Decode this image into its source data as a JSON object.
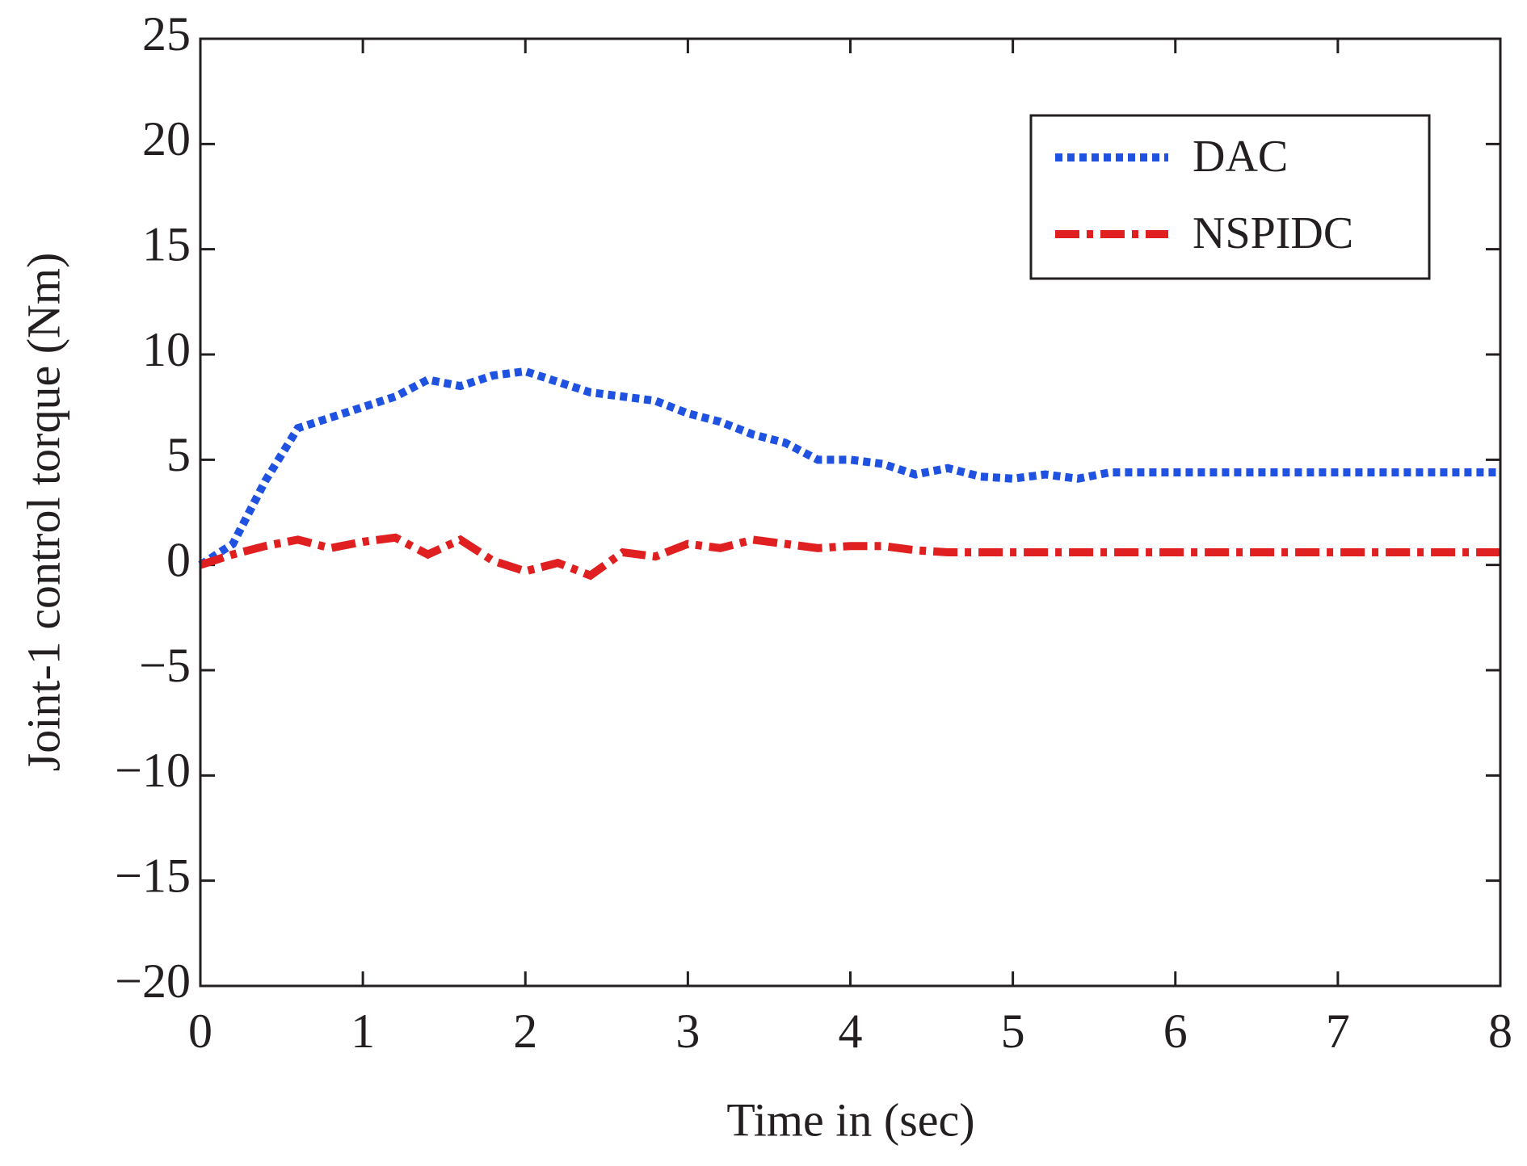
{
  "chart_data": {
    "type": "line",
    "xlabel": "Time in (sec)",
    "ylabel": "Joint-1 control torque (Nm)",
    "x": [
      0,
      0.2,
      0.4,
      0.6,
      0.8,
      1.0,
      1.2,
      1.4,
      1.6,
      1.8,
      2.0,
      2.2,
      2.4,
      2.6,
      2.8,
      3.0,
      3.2,
      3.4,
      3.6,
      3.8,
      4.0,
      4.2,
      4.4,
      4.6,
      4.8,
      5.0,
      5.2,
      5.4,
      5.6,
      5.8,
      6.0,
      6.4,
      6.8,
      7.2,
      7.6,
      8.0
    ],
    "series": [
      {
        "name": "DAC",
        "color": "#1f52e0",
        "dash": "dotted",
        "values": [
          0,
          1,
          4,
          6.5,
          7,
          7.5,
          8,
          8.8,
          8.5,
          9,
          9.2,
          8.7,
          8.2,
          8,
          7.8,
          7.2,
          6.8,
          6.2,
          5.8,
          5,
          5,
          4.8,
          4.3,
          4.6,
          4.2,
          4.1,
          4.3,
          4.1,
          4.4,
          4.4,
          4.4,
          4.4,
          4.4,
          4.4,
          4.4,
          4.4
        ]
      },
      {
        "name": "NSPIDC",
        "color": "#e02020",
        "dash": "dashdot",
        "values": [
          0,
          0.5,
          0.9,
          1.2,
          0.8,
          1.1,
          1.3,
          0.5,
          1.2,
          0.2,
          -0.3,
          0.1,
          -0.5,
          0.6,
          0.4,
          1.0,
          0.8,
          1.2,
          1.0,
          0.8,
          0.9,
          0.9,
          0.7,
          0.6,
          0.6,
          0.6,
          0.6,
          0.6,
          0.6,
          0.6,
          0.6,
          0.6,
          0.6,
          0.6,
          0.6,
          0.6
        ]
      }
    ],
    "xlim": [
      0,
      8
    ],
    "xticks": [
      0,
      1,
      2,
      3,
      4,
      5,
      6,
      7,
      8
    ],
    "ylim": [
      -20,
      25
    ],
    "yticks": [
      {
        "value": -20,
        "label": "−20"
      },
      {
        "value": -15,
        "label": "−15"
      },
      {
        "value": -10,
        "label": "−10"
      },
      {
        "value": -5,
        "label": "−5"
      },
      0,
      5,
      10,
      15,
      20,
      25
    ],
    "grid": false,
    "legend": "upper right"
  }
}
